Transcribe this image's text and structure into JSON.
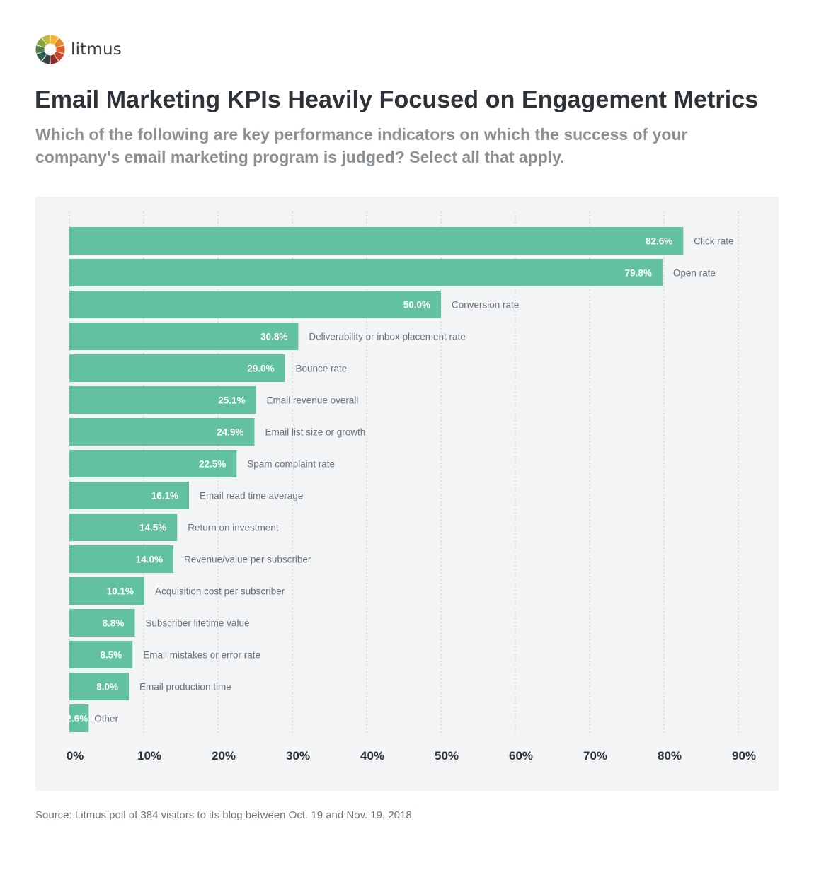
{
  "brand": {
    "name": "litmus",
    "logo_colors": [
      "#f7b32b",
      "#e6892c",
      "#e05a2a",
      "#c94530",
      "#8f2c26",
      "#3a3f44",
      "#2e5e52",
      "#4a7d4a",
      "#8aa339",
      "#c5b83a"
    ]
  },
  "header": {
    "title": "Email Marketing KPIs Heavily Focused on Engagement Metrics",
    "subtitle": "Which of the following are key performance indicators on which the success of your company's email marketing program is judged? Select all that apply."
  },
  "footer": {
    "source": "Source: Litmus poll of 384 visitors to its blog between Oct. 19 and Nov. 19, 2018"
  },
  "colors": {
    "bar": "#62c19f",
    "panel": "#f3f4f6",
    "value_label": "#ffffff",
    "category_label": "#6b7378",
    "axis_label": "#2c3238",
    "grid": "#c9cdd1"
  },
  "chart_data": {
    "type": "bar",
    "orientation": "horizontal",
    "title": "Email Marketing KPIs Heavily Focused on Engagement Metrics",
    "xlabel": "",
    "ylabel": "",
    "xlim": [
      0,
      90
    ],
    "grid": true,
    "categories": [
      "Click rate",
      "Open rate",
      "Conversion rate",
      "Deliverability or inbox placement rate",
      "Bounce rate",
      "Email revenue overall",
      "Email list size or growth",
      "Spam complaint rate",
      "Email read time average",
      "Return on investment",
      "Revenue/value per subscriber",
      "Acquisition cost per subscriber",
      "Subscriber lifetime value",
      "Email mistakes or error rate",
      "Email production time",
      "Other"
    ],
    "values": [
      82.6,
      79.8,
      50.0,
      30.8,
      29.0,
      25.1,
      24.9,
      22.5,
      16.1,
      14.5,
      14.0,
      10.1,
      8.8,
      8.5,
      8.0,
      2.6
    ],
    "value_labels": [
      "82.6%",
      "79.8%",
      "50.0%",
      "30.8%",
      "29.0%",
      "25.1%",
      "24.9%",
      "22.5%",
      "16.1%",
      "14.5%",
      "14.0%",
      "10.1%",
      "8.8%",
      "8.5%",
      "8.0%",
      "2.6%"
    ],
    "ticks": [
      0,
      10,
      20,
      30,
      40,
      50,
      60,
      70,
      80,
      90
    ],
    "tick_labels": [
      "0%",
      "10%",
      "20%",
      "30%",
      "40%",
      "50%",
      "60%",
      "70%",
      "80%",
      "90%"
    ]
  }
}
